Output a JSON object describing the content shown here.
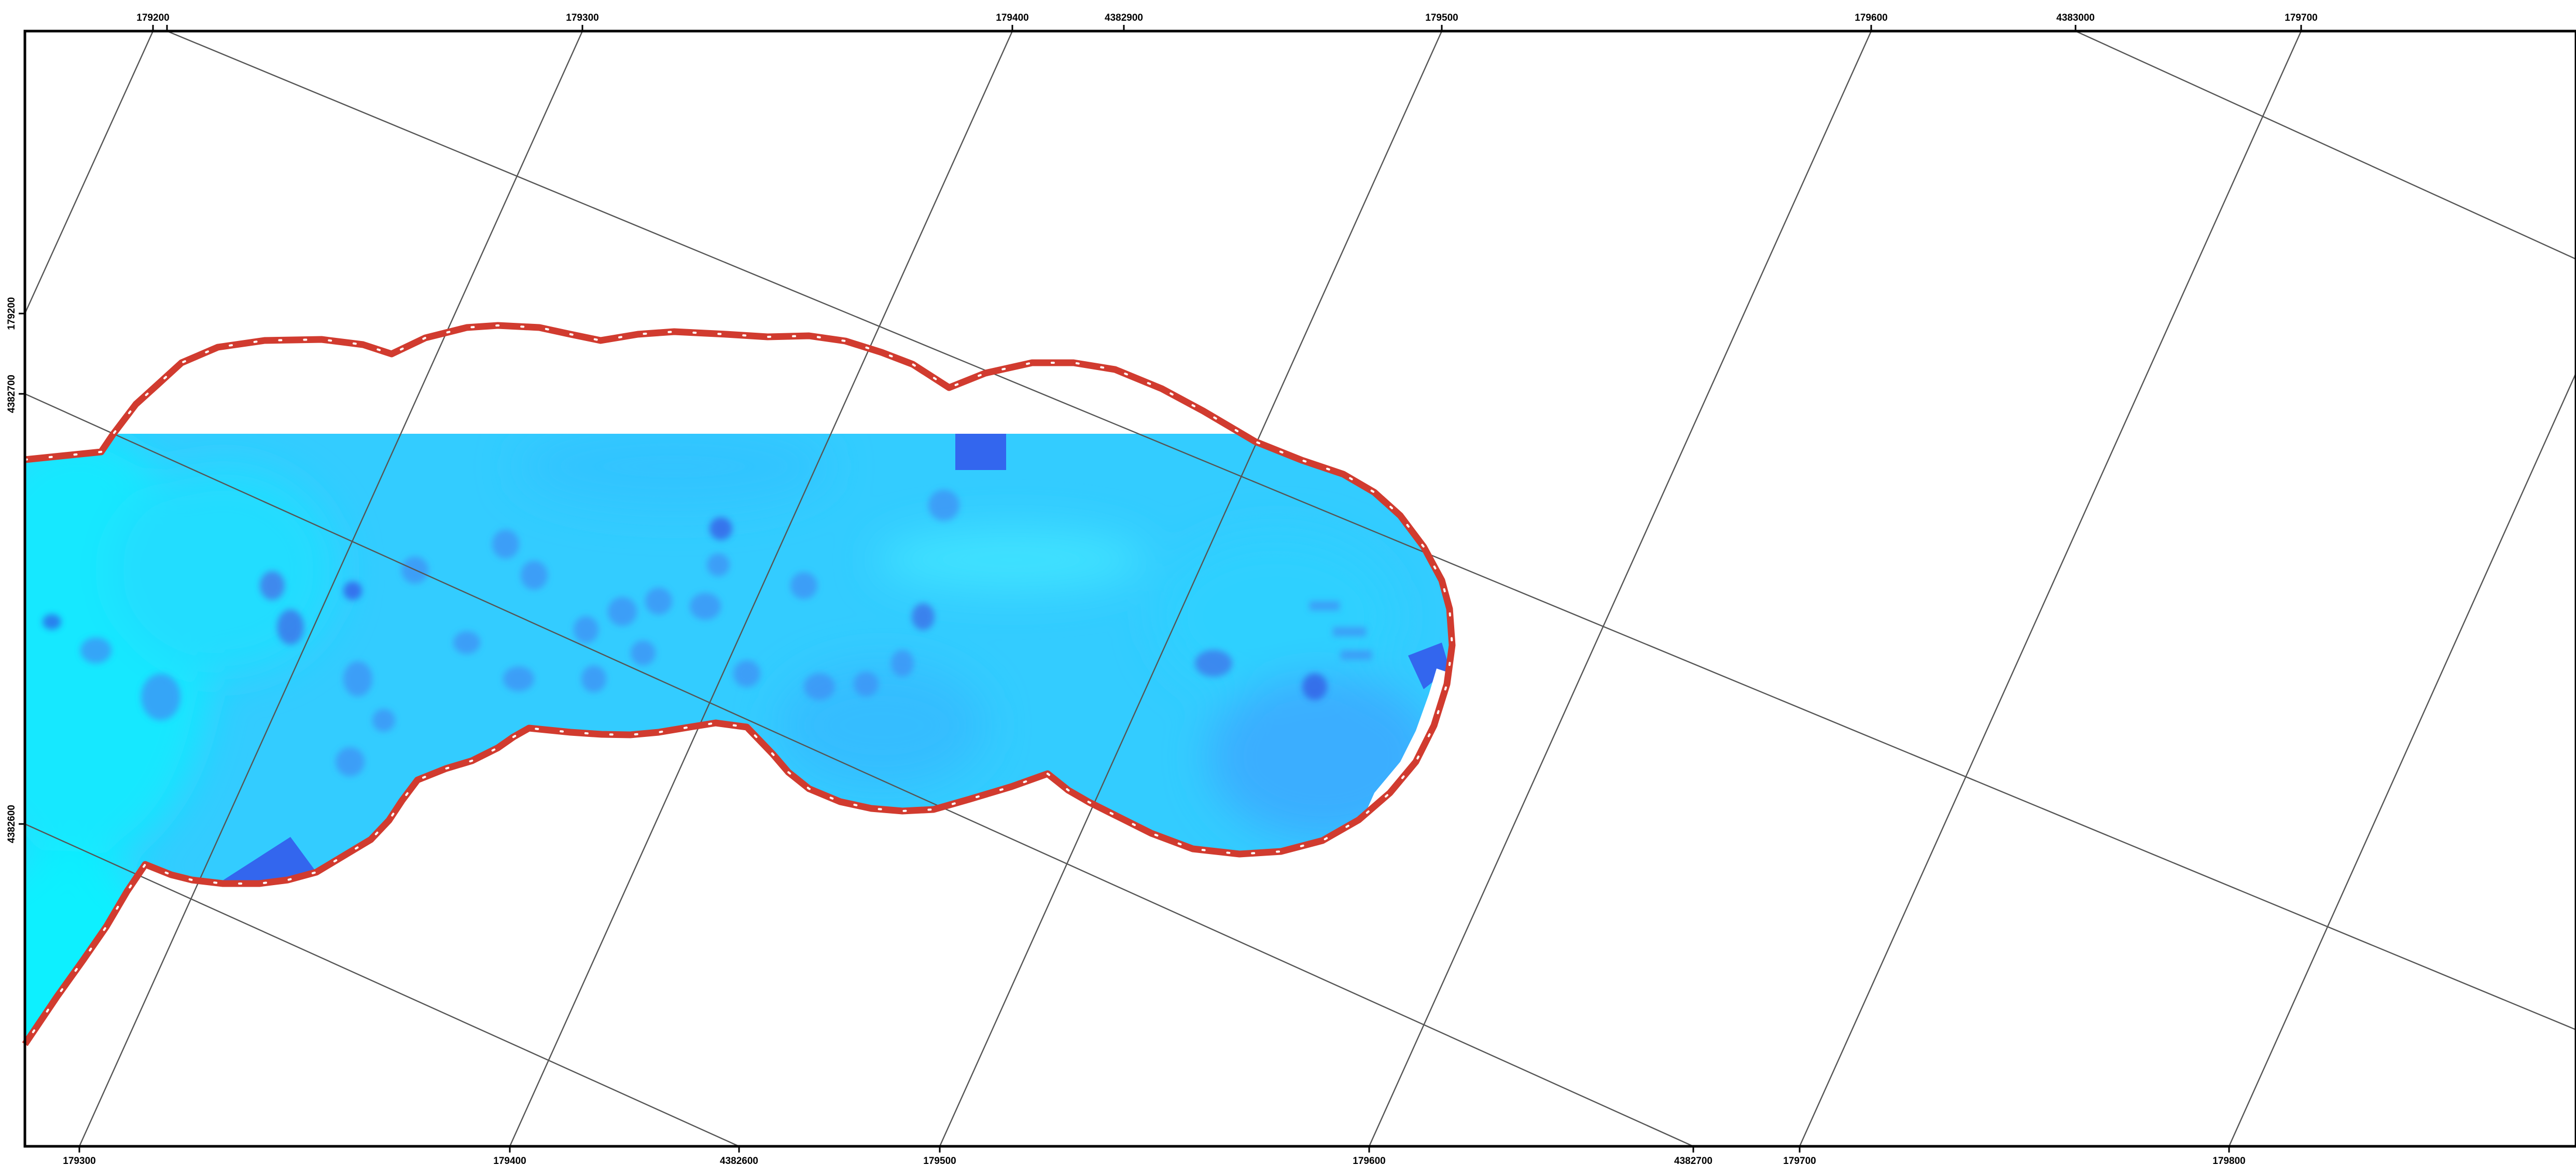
{
  "map": {
    "top_ticks": [
      {
        "label": "179200"
      },
      {
        "label": "179300"
      },
      {
        "label": "179400"
      },
      {
        "label": "4382900"
      },
      {
        "label": "179500"
      },
      {
        "label": "179600"
      },
      {
        "label": "4383000"
      },
      {
        "label": "179700"
      }
    ],
    "bottom_ticks": [
      {
        "label": "179300"
      },
      {
        "label": "179400"
      },
      {
        "label": "4382600"
      },
      {
        "label": "179500"
      },
      {
        "label": "179600"
      },
      {
        "label": "4382700"
      },
      {
        "label": "179700"
      },
      {
        "label": "179800"
      }
    ],
    "left_ticks": [
      {
        "label": "179200"
      },
      {
        "label": "4382700"
      },
      {
        "label": "4382600"
      }
    ],
    "colors": {
      "boundary": "#d13b2f",
      "raster_base": "#33ccff",
      "raster_light": "#19e6ff",
      "raster_dark": "#3366ee",
      "grid": "#555555",
      "frame": "#000000"
    }
  }
}
